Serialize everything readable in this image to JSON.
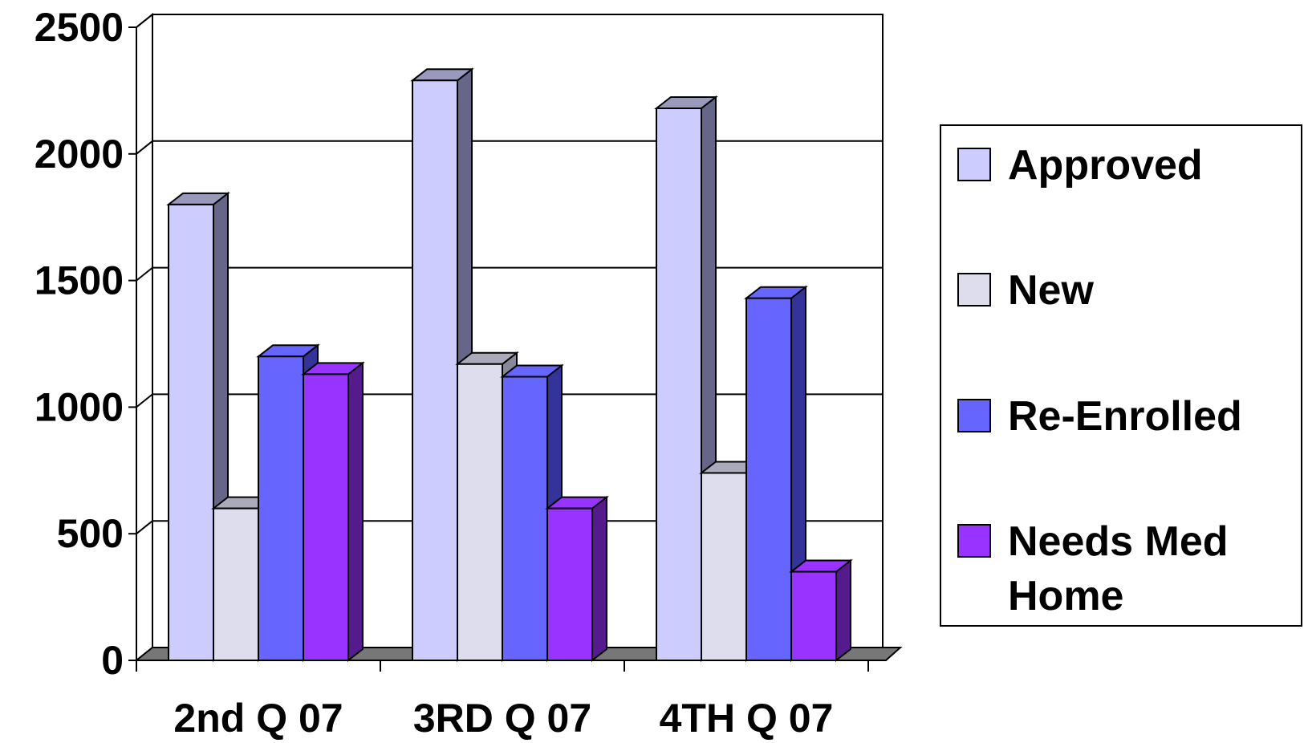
{
  "chart_data": {
    "type": "bar",
    "style": "3d-clustered-column",
    "categories": [
      "2nd Q 07",
      "3RD Q 07",
      "4TH Q 07"
    ],
    "series": [
      {
        "name": "Approved",
        "values": [
          1800,
          2290,
          2180
        ],
        "color": "#ccccff",
        "side_color": "#666688"
      },
      {
        "name": "New",
        "values": [
          600,
          1170,
          740
        ],
        "color": "#dddded",
        "side_color": "#888899"
      },
      {
        "name": "Re-Enrolled",
        "values": [
          1200,
          1120,
          1430
        ],
        "color": "#6666ff",
        "side_color": "#333399"
      },
      {
        "name": "Needs Med Home",
        "values": [
          1130,
          600,
          350
        ],
        "color": "#9933ff",
        "side_color": "#551a8b"
      }
    ],
    "y_ticks": [
      "0",
      "500",
      "1000",
      "1500",
      "2000",
      "2500"
    ],
    "ylim": [
      0,
      2500
    ],
    "title": "",
    "xlabel": "",
    "ylabel": "",
    "grid": true,
    "legend": "right"
  }
}
